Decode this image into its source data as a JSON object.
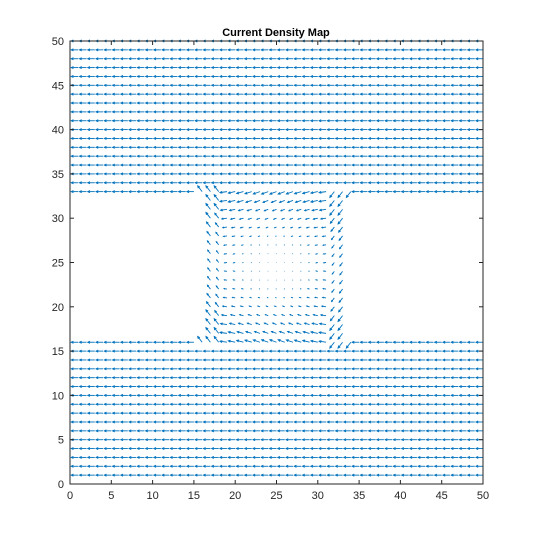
{
  "chart_data": {
    "type": "quiver",
    "title": "Current Density Map",
    "xlabel": "",
    "ylabel": "",
    "xlim": [
      0,
      50
    ],
    "ylim": [
      0,
      50
    ],
    "xticks": [
      0,
      5,
      10,
      15,
      20,
      25,
      30,
      35,
      40,
      45,
      50
    ],
    "yticks": [
      0,
      5,
      10,
      15,
      20,
      25,
      30,
      35,
      40,
      45,
      50
    ],
    "grid": false,
    "arrow_color": "#0072BD",
    "grid_points": {
      "x_start": 1,
      "x_end": 50,
      "y_start": 1,
      "y_end": 50,
      "step": 1
    },
    "conductor": {
      "lower_band": {
        "y_min": 1,
        "y_max": 16
      },
      "upper_band": {
        "y_min": 33,
        "y_max": 50
      },
      "neck": {
        "x_min": 17,
        "x_max": 33
      }
    },
    "vector_field": {
      "band_direction": "-x",
      "uniform_magnitude": 1.0,
      "neck_center_magnitude": 0.05
    }
  }
}
